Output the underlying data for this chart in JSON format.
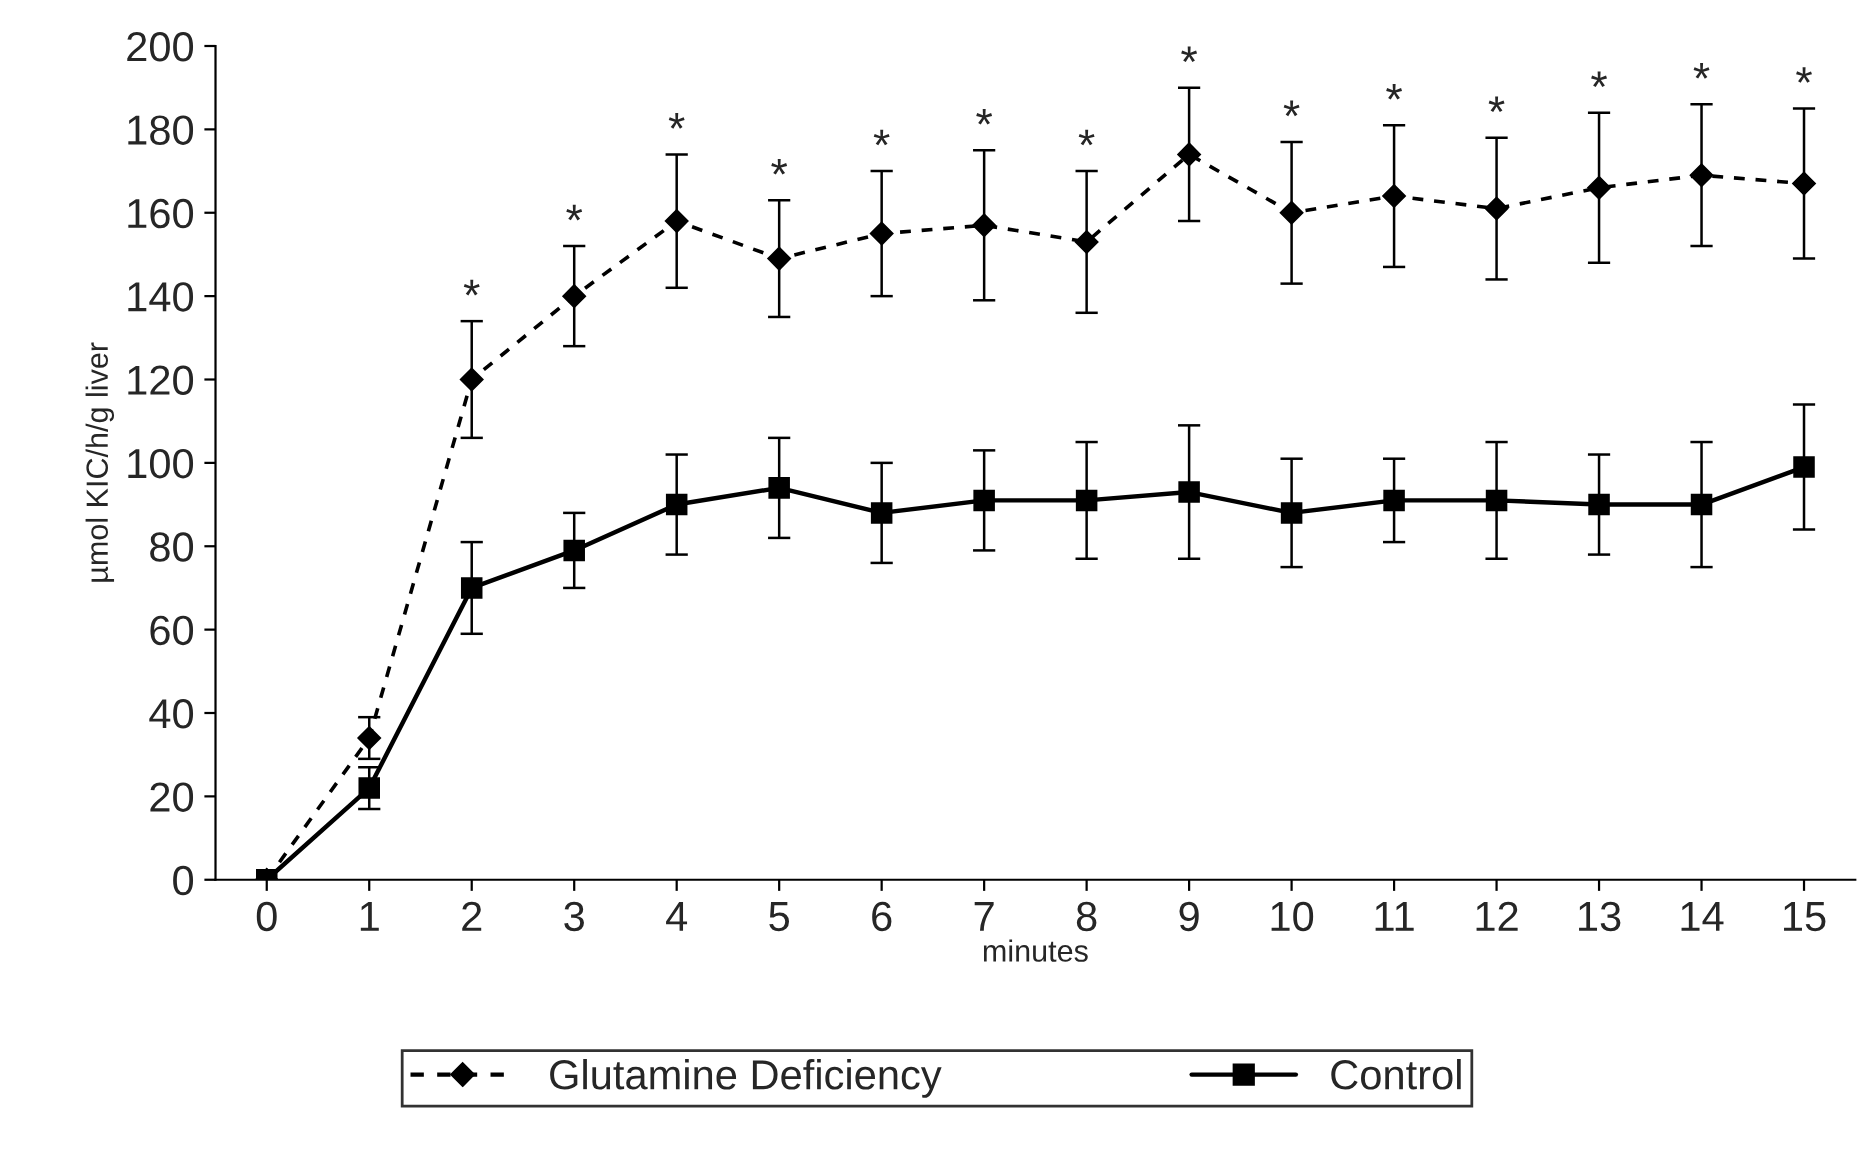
{
  "chart_data": {
    "type": "line",
    "xlabel": "minutes",
    "ylabel": "µmol KIC/h/g liver",
    "x": [
      0,
      1,
      2,
      3,
      4,
      5,
      6,
      7,
      8,
      9,
      10,
      11,
      12,
      13,
      14,
      15
    ],
    "series": [
      {
        "name": "Glutamine Deficiency",
        "color": "#000000",
        "marker": "diamond",
        "line_style": "dashed",
        "values": [
          0,
          34,
          120,
          140,
          158,
          149,
          155,
          157,
          153,
          174,
          160,
          164,
          161,
          166,
          169,
          167
        ],
        "errors": [
          null,
          5,
          14,
          12,
          16,
          14,
          15,
          18,
          17,
          16,
          17,
          17,
          17,
          18,
          17,
          18
        ]
      },
      {
        "name": "Control",
        "color": "#000000",
        "marker": "square",
        "line_style": "solid",
        "values": [
          0,
          22,
          70,
          79,
          90,
          94,
          88,
          91,
          91,
          93,
          88,
          91,
          91,
          90,
          90,
          99
        ],
        "errors": [
          null,
          5,
          11,
          9,
          12,
          12,
          12,
          12,
          14,
          16,
          13,
          10,
          14,
          12,
          15,
          15
        ]
      }
    ],
    "annotations": [
      {
        "text": "*",
        "x": 2,
        "y": 120
      },
      {
        "text": "*",
        "x": 3,
        "y": 140
      },
      {
        "text": "*",
        "x": 4,
        "y": 158
      },
      {
        "text": "*",
        "x": 5,
        "y": 149
      },
      {
        "text": "*",
        "x": 6,
        "y": 155
      },
      {
        "text": "*",
        "x": 7,
        "y": 157
      },
      {
        "text": "*",
        "x": 8,
        "y": 153
      },
      {
        "text": "*",
        "x": 9,
        "y": 174
      },
      {
        "text": "*",
        "x": 10,
        "y": 160
      },
      {
        "text": "*",
        "x": 11,
        "y": 164
      },
      {
        "text": "*",
        "x": 12,
        "y": 161
      },
      {
        "text": "*",
        "x": 13,
        "y": 166
      },
      {
        "text": "*",
        "x": 14,
        "y": 169
      },
      {
        "text": "*",
        "x": 15,
        "y": 167
      }
    ],
    "xlim": [
      -0.5,
      15.5
    ],
    "xticks": [
      0,
      1,
      2,
      3,
      4,
      5,
      6,
      7,
      8,
      9,
      10,
      11,
      12,
      13,
      14,
      15
    ],
    "ylim": [
      0,
      200
    ],
    "yticks": [
      0,
      20,
      40,
      60,
      80,
      100,
      120,
      140,
      160,
      180,
      200
    ],
    "legend": "bottom",
    "grid": false
  }
}
